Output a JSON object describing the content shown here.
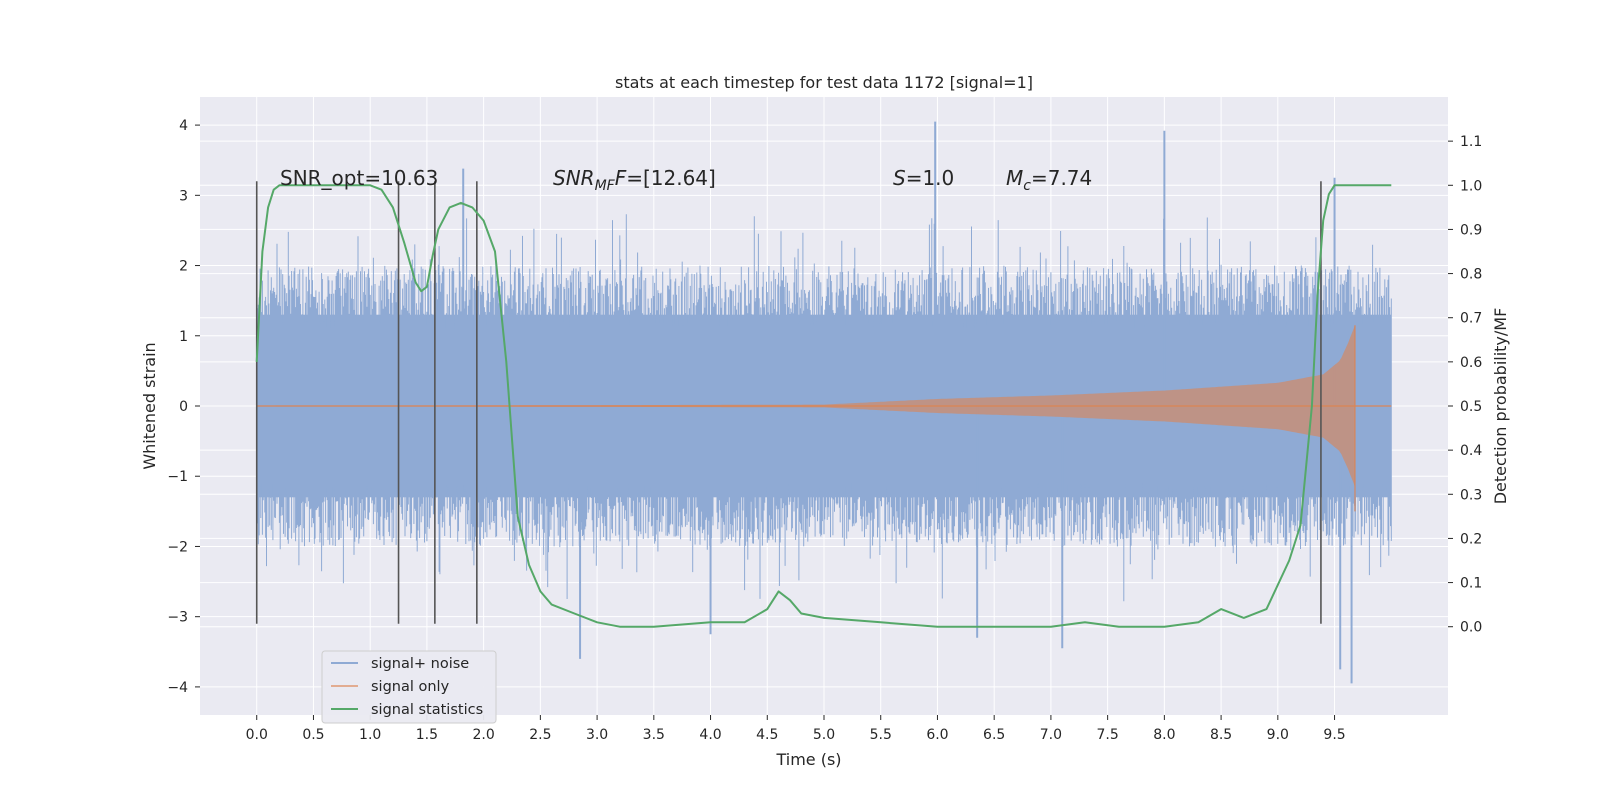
{
  "chart_data": {
    "type": "line",
    "title": "stats at each timestep for test data 1172 [signal=1]",
    "xlabel": "Time (s)",
    "ylabel_left": "Whitened strain",
    "ylabel_right": "Detection probability/MF",
    "xlim": [
      -0.5,
      10.5
    ],
    "ylim_left": [
      -4.4,
      4.4
    ],
    "ylim_right": [
      -0.2,
      1.2
    ],
    "grid": true,
    "legend_position": "lower-left",
    "xticks": [
      "0.0",
      "0.5",
      "1.0",
      "1.5",
      "2.0",
      "2.5",
      "3.0",
      "3.5",
      "4.0",
      "4.5",
      "5.0",
      "5.5",
      "6.0",
      "6.5",
      "7.0",
      "7.5",
      "8.0",
      "8.5",
      "9.0",
      "9.5"
    ],
    "xtick_values": [
      0,
      0.5,
      1,
      1.5,
      2,
      2.5,
      3,
      3.5,
      4,
      4.5,
      5,
      5.5,
      6,
      6.5,
      7,
      7.5,
      8,
      8.5,
      9,
      9.5
    ],
    "yticks_left": [
      "4",
      "3",
      "2",
      "1",
      "0",
      "−1",
      "−2",
      "−3",
      "−4"
    ],
    "ytick_values_left": [
      4,
      3,
      2,
      1,
      0,
      -1,
      -2,
      -3,
      -4
    ],
    "yticks_right": [
      "1.1",
      "1.0",
      "0.9",
      "0.8",
      "0.7",
      "0.6",
      "0.5",
      "0.4",
      "0.3",
      "0.2",
      "0.1",
      "0.0"
    ],
    "ytick_values_right": [
      1.1,
      1.0,
      0.9,
      0.8,
      0.7,
      0.6,
      0.5,
      0.4,
      0.3,
      0.2,
      0.1,
      0.0
    ],
    "annotations": {
      "snr_opt": "SNR_opt=10.63",
      "snr_mf_base": "SNR",
      "snr_mf_sub": "MF",
      "snr_mf_value": "=[12.64]",
      "s_label": "S",
      "s_value": "=1.0",
      "mc_base": "M",
      "mc_sub": "c",
      "mc_value": "=7.74"
    },
    "vertical_lines_x": [
      0.0,
      1.25,
      1.57,
      1.94,
      9.38
    ],
    "vertical_lines_range": [
      -3.1,
      3.2
    ],
    "noise": {
      "x_range": [
        0.0,
        10.0
      ],
      "core_amplitude": 1.3,
      "typical_peak": 2.0,
      "max_peak": 4.05,
      "min_peak": -3.95
    },
    "signal_only": {
      "x_range": [
        0.0,
        9.68
      ],
      "envelope": [
        [
          0.0,
          0.0
        ],
        [
          5.0,
          0.02
        ],
        [
          6.0,
          0.1
        ],
        [
          7.0,
          0.15
        ],
        [
          8.0,
          0.22
        ],
        [
          9.0,
          0.33
        ],
        [
          9.4,
          0.45
        ],
        [
          9.55,
          0.65
        ],
        [
          9.62,
          0.9
        ],
        [
          9.68,
          1.15
        ]
      ]
    },
    "statistics": {
      "x": [
        0.0,
        0.05,
        0.1,
        0.15,
        0.2,
        0.3,
        0.5,
        0.8,
        1.0,
        1.1,
        1.2,
        1.3,
        1.4,
        1.45,
        1.5,
        1.55,
        1.6,
        1.7,
        1.8,
        1.9,
        2.0,
        2.1,
        2.2,
        2.3,
        2.4,
        2.5,
        2.6,
        2.8,
        3.0,
        3.2,
        3.5,
        4.0,
        4.3,
        4.5,
        4.6,
        4.7,
        4.8,
        5.0,
        5.5,
        6.0,
        6.5,
        7.0,
        7.3,
        7.6,
        8.0,
        8.3,
        8.5,
        8.7,
        8.9,
        9.1,
        9.2,
        9.3,
        9.35,
        9.4,
        9.45,
        9.5,
        9.6,
        9.7,
        10.0
      ],
      "values": [
        0.6,
        0.85,
        0.95,
        0.99,
        1.0,
        1.0,
        1.0,
        1.0,
        1.0,
        0.99,
        0.95,
        0.87,
        0.78,
        0.76,
        0.77,
        0.84,
        0.9,
        0.95,
        0.96,
        0.95,
        0.92,
        0.85,
        0.6,
        0.25,
        0.14,
        0.08,
        0.05,
        0.03,
        0.01,
        0.0,
        0.0,
        0.01,
        0.01,
        0.04,
        0.08,
        0.06,
        0.03,
        0.02,
        0.01,
        0.0,
        0.0,
        0.0,
        0.01,
        0.0,
        0.0,
        0.01,
        0.04,
        0.02,
        0.04,
        0.15,
        0.23,
        0.5,
        0.75,
        0.92,
        0.98,
        1.0,
        1.0,
        1.0,
        1.0
      ]
    },
    "series": [
      {
        "name": "signal+ noise",
        "color": "#8faad4"
      },
      {
        "name": "signal only",
        "color": "#dd8452"
      },
      {
        "name": "signal statistics",
        "color": "#55a868"
      }
    ],
    "colors": {
      "background": "#eaeaf2",
      "grid": "#ffffff",
      "noise": "#8faad4",
      "signal": "#dd8452",
      "stat": "#55a868",
      "vline": "#555555"
    }
  }
}
